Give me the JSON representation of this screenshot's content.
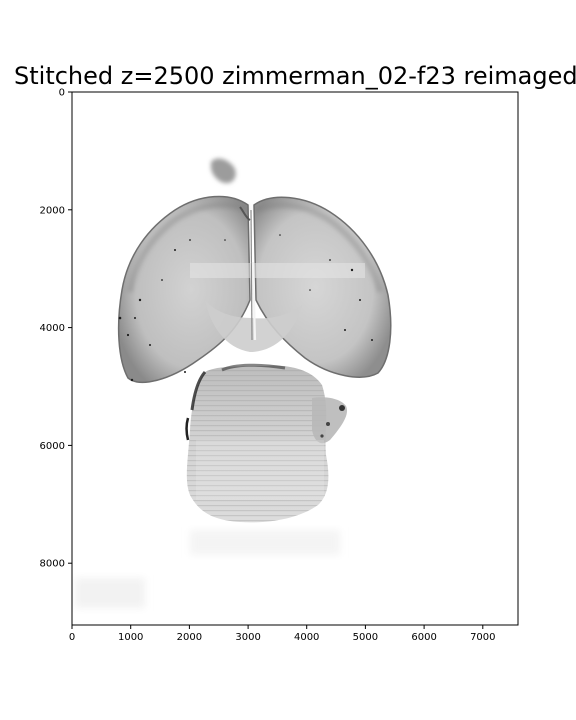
{
  "figure": {
    "title": "Stitched z=2500 zimmerman_02-f23 reimaged"
  },
  "axes": {
    "x_ticks": [
      "0",
      "1000",
      "2000",
      "3000",
      "4000",
      "5000",
      "6000",
      "7000"
    ],
    "y_ticks": [
      "0",
      "2000",
      "4000",
      "6000",
      "8000"
    ],
    "x_range": [
      0,
      7600
    ],
    "y_range": [
      9050,
      0
    ]
  },
  "image": {
    "subject": "brain-section-grayscale-microscopy",
    "colormap": "gray_r"
  }
}
